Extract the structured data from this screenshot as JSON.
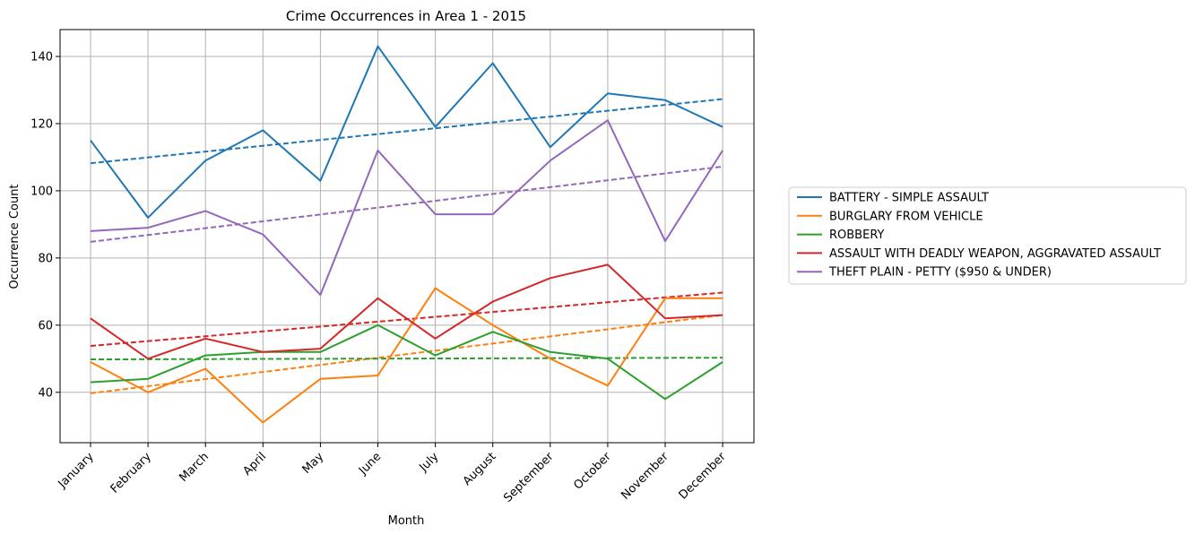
{
  "chart_data": {
    "type": "line",
    "title": "Crime Occurrences in Area 1 - 2015",
    "xlabel": "Month",
    "ylabel": "Occurrence Count",
    "categories": [
      "January",
      "February",
      "March",
      "April",
      "May",
      "June",
      "July",
      "August",
      "September",
      "October",
      "November",
      "December"
    ],
    "ylim": [
      25,
      148
    ],
    "yticks": [
      40,
      60,
      80,
      100,
      120,
      140
    ],
    "grid": true,
    "legend_position": "right",
    "series": [
      {
        "name": "BATTERY - SIMPLE ASSAULT",
        "color": "#1f77b4",
        "values": [
          115,
          92,
          109,
          118,
          103,
          143,
          119,
          138,
          113,
          129,
          127,
          119
        ],
        "trend": [
          108.2,
          127.3
        ]
      },
      {
        "name": "BURGLARY FROM VEHICLE",
        "color": "#ff7f0e",
        "values": [
          49,
          40,
          47,
          31,
          44,
          45,
          71,
          60,
          50,
          42,
          68,
          68
        ],
        "trend": [
          39.7,
          63.0
        ]
      },
      {
        "name": "ROBBERY",
        "color": "#2ca02c",
        "values": [
          43,
          44,
          51,
          52,
          52,
          60,
          51,
          58,
          52,
          50,
          38,
          49
        ],
        "trend": [
          49.8,
          50.3
        ]
      },
      {
        "name": "ASSAULT WITH DEADLY WEAPON, AGGRAVATED ASSAULT",
        "color": "#d62728",
        "values": [
          62,
          50,
          56,
          52,
          53,
          68,
          56,
          67,
          74,
          78,
          62,
          63
        ],
        "trend": [
          53.8,
          69.7
        ]
      },
      {
        "name": "THEFT PLAIN - PETTY ($950 & UNDER)",
        "color": "#9467bd",
        "values": [
          88,
          89,
          94,
          87,
          69,
          112,
          93,
          93,
          109,
          121,
          85,
          112
        ],
        "trend": [
          84.8,
          107.2
        ]
      }
    ]
  }
}
